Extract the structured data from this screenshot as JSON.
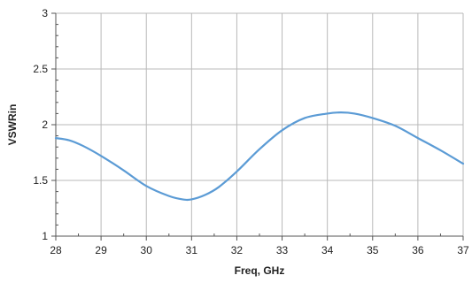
{
  "chart_data": {
    "type": "line",
    "title": "",
    "xlabel": "Freq, GHz",
    "ylabel": "VSWRin",
    "xlim": [
      28,
      37
    ],
    "ylim": [
      1,
      3
    ],
    "x_ticks": [
      28,
      29,
      30,
      31,
      32,
      33,
      34,
      35,
      36,
      37
    ],
    "x_tick_labels": [
      "28",
      "29",
      "30",
      "31",
      "32",
      "33",
      "34",
      "35",
      "36",
      "37"
    ],
    "y_ticks": [
      1,
      1.5,
      2,
      2.5,
      3
    ],
    "y_tick_labels": [
      "1",
      "1.5",
      "2",
      "2.5",
      "3"
    ],
    "x_minor_step": 0.5,
    "y_minor_step": 0.1,
    "grid": true,
    "series": [
      {
        "color": "#5b9bd5",
        "x": [
          28,
          28.3,
          28.6,
          29,
          29.5,
          30,
          30.5,
          30.8,
          31,
          31.3,
          31.6,
          32,
          32.5,
          33,
          33.5,
          34,
          34.3,
          34.6,
          35,
          35.5,
          36,
          36.5,
          37
        ],
        "y": [
          1.88,
          1.86,
          1.81,
          1.72,
          1.59,
          1.45,
          1.36,
          1.33,
          1.33,
          1.37,
          1.44,
          1.58,
          1.78,
          1.95,
          2.06,
          2.1,
          2.11,
          2.1,
          2.06,
          1.99,
          1.88,
          1.77,
          1.65
        ]
      }
    ]
  }
}
